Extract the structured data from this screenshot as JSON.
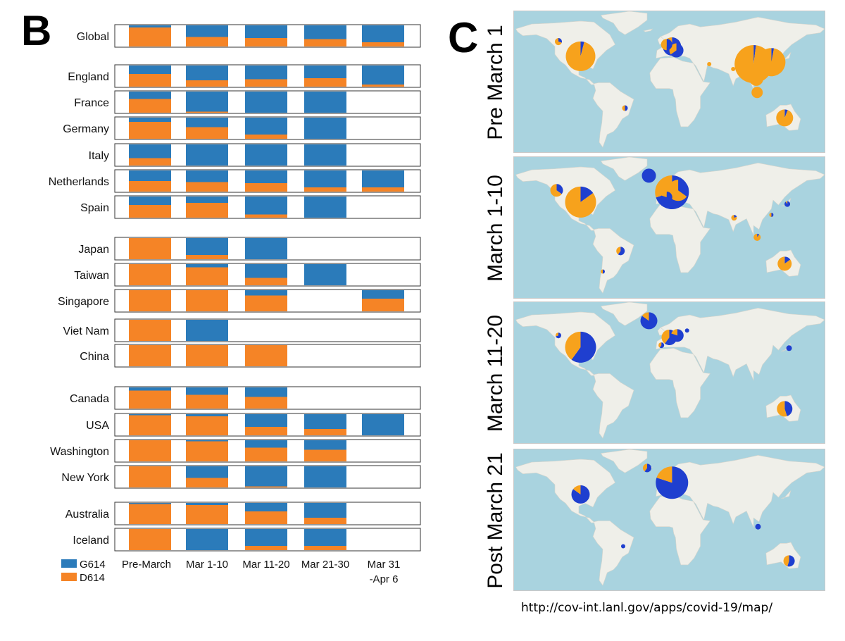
{
  "panel_b_letter": "B",
  "panel_c_letter": "C",
  "source_url": "http://cov-int.lanl.gov/apps/covid-19/map/",
  "colors": {
    "G614": "#2b7bba",
    "D614": "#f58426",
    "map_water": "#a9d3df",
    "map_land": "#efefe9",
    "map_blue": "#1f3fcf",
    "map_orange": "#f7a21c"
  },
  "chart_data": {
    "type": "bar",
    "subtype": "stacked-100",
    "categories": [
      "Pre-March",
      "Mar 1-10",
      "Mar 11-20",
      "Mar 21-30",
      "Mar 31\n-Apr 6"
    ],
    "category_labels": [
      [
        "Pre-March"
      ],
      [
        "Mar 1-10"
      ],
      [
        "Mar 11-20"
      ],
      [
        "Mar 21-30"
      ],
      [
        "Mar 31",
        "-Apr 6"
      ]
    ],
    "legend": {
      "position": "bottom-left",
      "entries": [
        {
          "name": "G614",
          "color": "#2b7bba"
        },
        {
          "name": "D614",
          "color": "#f58426"
        }
      ]
    },
    "groups": [
      {
        "rows": [
          {
            "name": "Global",
            "g614": [
              0.1,
              0.55,
              0.6,
              0.65,
              0.8
            ]
          }
        ]
      },
      {
        "rows": [
          {
            "name": "England",
            "g614": [
              0.4,
              0.7,
              0.65,
              0.6,
              0.9
            ]
          },
          {
            "name": "France",
            "g614": [
              0.35,
              0.95,
              1.0,
              1.0,
              null
            ]
          },
          {
            "name": "Germany",
            "g614": [
              0.2,
              0.45,
              0.8,
              1.0,
              null
            ]
          },
          {
            "name": "Italy",
            "g614": [
              0.65,
              1.0,
              1.0,
              1.0,
              null
            ]
          },
          {
            "name": "Netherlands",
            "g614": [
              0.5,
              0.55,
              0.6,
              0.8,
              0.8
            ]
          },
          {
            "name": "Spain",
            "g614": [
              0.4,
              0.3,
              0.85,
              1.0,
              null
            ]
          }
        ]
      },
      {
        "rows": [
          {
            "name": "Japan",
            "g614": [
              0.0,
              0.8,
              1.0,
              null,
              null
            ]
          },
          {
            "name": "Taiwan",
            "g614": [
              0.0,
              0.15,
              0.65,
              1.0,
              null
            ]
          },
          {
            "name": "Singapore",
            "g614": [
              0.0,
              0.0,
              0.25,
              null,
              0.4
            ]
          },
          {
            "name": "Viet Nam",
            "g614": [
              0.0,
              1.0,
              null,
              null,
              null
            ]
          },
          {
            "name": "China",
            "g614": [
              0.0,
              0.0,
              0.0,
              null,
              null
            ]
          }
        ]
      },
      {
        "rows": [
          {
            "name": "Canada",
            "g614": [
              0.15,
              0.35,
              0.45,
              null,
              null
            ]
          },
          {
            "name": "USA",
            "g614": [
              0.05,
              0.1,
              0.6,
              0.7,
              1.0
            ]
          },
          {
            "name": "Washington",
            "g614": [
              0.0,
              0.05,
              0.35,
              0.45,
              null
            ]
          },
          {
            "name": "New York",
            "g614": [
              0.0,
              0.55,
              0.95,
              1.0,
              null
            ]
          }
        ]
      },
      {
        "rows": [
          {
            "name": "Australia",
            "g614": [
              0.05,
              0.1,
              0.4,
              0.7,
              null
            ]
          },
          {
            "name": "Iceland",
            "g614": [
              0.0,
              1.0,
              0.8,
              0.8,
              null
            ]
          }
        ]
      }
    ]
  },
  "maps": [
    {
      "label": "Pre March 1",
      "pies": [
        {
          "lon": 100,
          "lat": 30,
          "r": 27,
          "blue": 0.02
        },
        {
          "lon": 120,
          "lat": 32,
          "r": 20,
          "blue": 0.03
        },
        {
          "lon": -95,
          "lat": 38,
          "r": 21,
          "blue": 0.04
        },
        {
          "lon": 8,
          "lat": 48,
          "r": 13,
          "blue": 0.75
        },
        {
          "lon": 13,
          "lat": 44,
          "r": 10,
          "blue": 0.65
        },
        {
          "lon": 2,
          "lat": 50,
          "r": 8,
          "blue": 0.5
        },
        {
          "lon": 135,
          "lat": -25,
          "r": 12,
          "blue": 0.06
        },
        {
          "lon": 103,
          "lat": 15,
          "r": 10,
          "blue": 0.0
        },
        {
          "lon": 104,
          "lat": 1,
          "r": 8,
          "blue": 0.0
        },
        {
          "lon": -120,
          "lat": 53,
          "r": 5,
          "blue": 0.3
        },
        {
          "lon": -45,
          "lat": -15,
          "r": 4,
          "blue": 0.5
        },
        {
          "lon": 77,
          "lat": 25,
          "r": 3,
          "blue": 0.0
        },
        {
          "lon": 50,
          "lat": 30,
          "r": 3,
          "blue": 0.0
        }
      ]
    },
    {
      "label": "March 1-10",
      "pies": [
        {
          "lon": 8,
          "lat": 48,
          "r": 24,
          "blue": 0.7
        },
        {
          "lon": 15,
          "lat": 50,
          "r": 15,
          "blue": 0.35
        },
        {
          "lon": -95,
          "lat": 38,
          "r": 22,
          "blue": 0.15
        },
        {
          "lon": -122,
          "lat": 50,
          "r": 9,
          "blue": 0.35
        },
        {
          "lon": -18,
          "lat": 65,
          "r": 10,
          "blue": 1.0
        },
        {
          "lon": 2,
          "lat": 43,
          "r": 8,
          "blue": 0.8
        },
        {
          "lon": 135,
          "lat": -25,
          "r": 10,
          "blue": 0.15
        },
        {
          "lon": 78,
          "lat": 22,
          "r": 4,
          "blue": 0.2
        },
        {
          "lon": 104,
          "lat": 2,
          "r": 5,
          "blue": 0.1
        },
        {
          "lon": -50,
          "lat": -12,
          "r": 6,
          "blue": 0.6
        },
        {
          "lon": 120,
          "lat": 25,
          "r": 3,
          "blue": 0.5
        },
        {
          "lon": 138,
          "lat": 36,
          "r": 4,
          "blue": 0.9
        },
        {
          "lon": -70,
          "lat": -33,
          "r": 3,
          "blue": 0.5
        }
      ]
    },
    {
      "label": "March 11-20",
      "pies": [
        {
          "lon": -95,
          "lat": 38,
          "r": 22,
          "blue": 0.6
        },
        {
          "lon": -18,
          "lat": 65,
          "r": 12,
          "blue": 0.85
        },
        {
          "lon": 5,
          "lat": 48,
          "r": 11,
          "blue": 0.6
        },
        {
          "lon": 14,
          "lat": 50,
          "r": 9,
          "blue": 0.8
        },
        {
          "lon": 135,
          "lat": -25,
          "r": 11,
          "blue": 0.45
        },
        {
          "lon": -120,
          "lat": 50,
          "r": 4,
          "blue": 0.7
        },
        {
          "lon": -4,
          "lat": 40,
          "r": 4,
          "blue": 0.6
        },
        {
          "lon": 140,
          "lat": 37,
          "r": 4,
          "blue": 1.0
        },
        {
          "lon": 25,
          "lat": 55,
          "r": 3,
          "blue": 1.0
        }
      ]
    },
    {
      "label": "Post March 21",
      "pies": [
        {
          "lon": 8,
          "lat": 50,
          "r": 23,
          "blue": 0.8
        },
        {
          "lon": -95,
          "lat": 38,
          "r": 13,
          "blue": 0.85
        },
        {
          "lon": -20,
          "lat": 65,
          "r": 6,
          "blue": 0.6
        },
        {
          "lon": 140,
          "lat": -30,
          "r": 8,
          "blue": 0.55
        },
        {
          "lon": 105,
          "lat": 5,
          "r": 4,
          "blue": 1.0
        },
        {
          "lon": -47,
          "lat": -15,
          "r": 3,
          "blue": 1.0
        }
      ]
    }
  ]
}
